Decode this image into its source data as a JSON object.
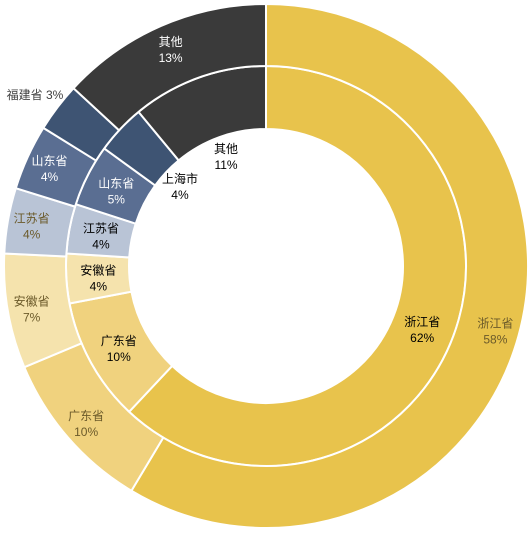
{
  "chart_data": {
    "type": "pie",
    "variant": "nested-donut",
    "legend": "none",
    "series": [
      {
        "ring": "inner",
        "slices": [
          {
            "label": "浙江省",
            "value": 62,
            "value_label": "62%",
            "color": "#E8C34C"
          },
          {
            "label": "广东省",
            "value": 10,
            "value_label": "10%",
            "color": "#F0D27E"
          },
          {
            "label": "安徽省",
            "value": 4,
            "value_label": "4%",
            "color": "#F5E3AD"
          },
          {
            "label": "江苏省",
            "value": 4,
            "value_label": "4%",
            "color": "#B9C4D6"
          },
          {
            "label": "山东省",
            "value": 5,
            "value_label": "5%",
            "color": "#5A6E92"
          },
          {
            "label": "上海市",
            "value": 4,
            "value_label": "4%",
            "color": "#3E5473"
          },
          {
            "label": "其他",
            "value": 11,
            "value_label": "11%",
            "color": "#3A3A3A"
          }
        ]
      },
      {
        "ring": "outer",
        "slices": [
          {
            "label": "浙江省",
            "value": 58,
            "value_label": "58%",
            "color": "#E8C34C"
          },
          {
            "label": "广东省",
            "value": 10,
            "value_label": "10%",
            "color": "#F0D27E"
          },
          {
            "label": "安徽省",
            "value": 7,
            "value_label": "7%",
            "color": "#F5E3AD"
          },
          {
            "label": "江苏省",
            "value": 4,
            "value_label": "4%",
            "color": "#B9C4D6"
          },
          {
            "label": "山东省",
            "value": 4,
            "value_label": "4%",
            "color": "#5A6E92"
          },
          {
            "label": "福建省",
            "value": 3,
            "value_label": "3%",
            "color": "#3E5473"
          },
          {
            "label": "其他",
            "value": 13,
            "value_label": "13%",
            "color": "#3A3A3A"
          }
        ]
      }
    ]
  }
}
